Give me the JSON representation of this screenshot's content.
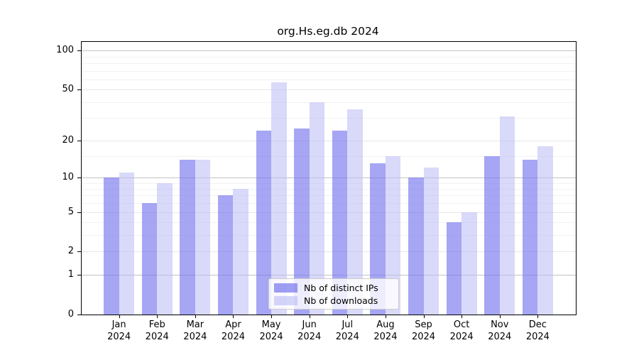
{
  "chart_data": {
    "type": "bar",
    "title": "org.Hs.eg.db 2024",
    "categories": [
      "Jan",
      "Feb",
      "Mar",
      "Apr",
      "May",
      "Jun",
      "Jul",
      "Aug",
      "Sep",
      "Oct",
      "Nov",
      "Dec"
    ],
    "x_tick_second_line": "2024",
    "series": [
      {
        "name": "Nb of distinct IPs",
        "color_hex": "#6f6fed",
        "alpha": 0.62,
        "values": [
          10,
          6,
          14,
          7,
          24,
          25,
          24,
          13,
          10,
          4,
          15,
          14
        ]
      },
      {
        "name": "Nb of downloads",
        "color_hex": "#babaf6",
        "alpha": 0.55,
        "values": [
          11,
          9,
          14,
          8,
          57,
          40,
          35,
          15,
          12,
          5,
          31,
          18
        ]
      }
    ],
    "y_scale": "log10(1+x)",
    "y_ticks": [
      0,
      1,
      2,
      5,
      10,
      20,
      50,
      100
    ],
    "y_major_gridlines": [
      1,
      10,
      100
    ],
    "y_minor_gridlines": [
      3,
      4,
      6,
      7,
      8,
      9,
      15,
      30,
      40,
      60,
      70,
      80,
      90
    ],
    "ylim_top": 118,
    "grid": true,
    "legend_position": "bottom-center-inside",
    "grid_major_color": "#c3c3c3",
    "grid_labeled_color": "#e7e7e7",
    "grid_minor_color": "#f2f2f2",
    "axis_color": "#000000",
    "background_color": "#ffffff"
  }
}
